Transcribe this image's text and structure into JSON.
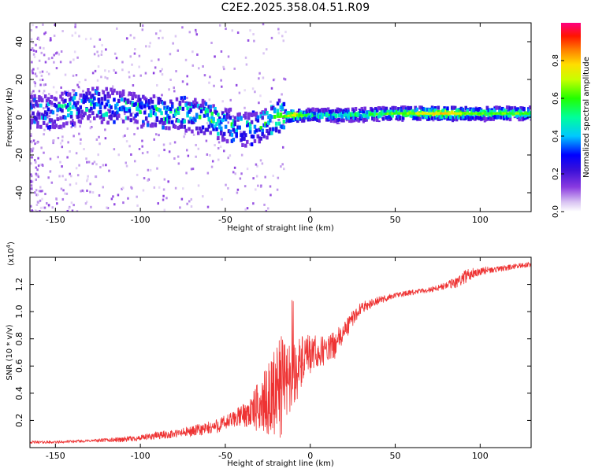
{
  "title": "C2E2.2025.358.04.51.R09",
  "chart_data": [
    {
      "type": "heatmap",
      "name": "spectrogram",
      "xlabel": "Height of straight line (km)",
      "ylabel": "Frequency (Hz)",
      "xlim": [
        -165,
        130
      ],
      "ylim": [
        -50,
        50
      ],
      "xticks": [
        -150,
        -100,
        -50,
        0,
        50,
        100
      ],
      "yticks": [
        -40,
        -20,
        0,
        20,
        40
      ],
      "colorbar": {
        "label": "Normalized spectral amplitude",
        "range": [
          0,
          1
        ],
        "ticks": [
          "0.0",
          "0.2",
          "0.4",
          "0.6",
          "0.8"
        ]
      },
      "ridge": {
        "description": "dominant frequency band vs height",
        "x": [
          -165,
          -150,
          -130,
          -110,
          -90,
          -70,
          -60,
          -50,
          -40,
          -30,
          -25,
          -20,
          -10,
          0,
          20,
          50,
          80,
          100,
          130
        ],
        "center_hz": [
          3,
          3,
          7,
          5,
          3,
          1,
          -1,
          -4,
          -7,
          -6,
          -3,
          0,
          1,
          1,
          1,
          2,
          2,
          2,
          2
        ],
        "amplitude": [
          0.25,
          0.3,
          0.35,
          0.35,
          0.4,
          0.4,
          0.45,
          0.4,
          0.35,
          0.35,
          0.4,
          0.6,
          0.75,
          0.5,
          0.5,
          0.6,
          0.8,
          0.6,
          0.6
        ]
      }
    },
    {
      "type": "line",
      "name": "snr",
      "xlabel": "Height of straight line (km)",
      "ylabel": "SNR (10 * v/v)",
      "scale_label": "(x10",
      "scale_exponent": "4",
      "scale_suffix": ")",
      "xlim": [
        -165,
        130
      ],
      "ylim": [
        0,
        1.4
      ],
      "xticks": [
        -150,
        -100,
        -50,
        0,
        50,
        100
      ],
      "yticks": [
        "0.2",
        "0.4",
        "0.6",
        "0.8",
        "1.0",
        "1.2"
      ],
      "series": [
        {
          "name": "SNR",
          "color": "#ee3333",
          "x": [
            -165,
            -150,
            -130,
            -110,
            -100,
            -90,
            -80,
            -70,
            -60,
            -50,
            -45,
            -40,
            -35,
            -30,
            -25,
            -20,
            -17,
            -15,
            -10,
            -5,
            0,
            5,
            10,
            15,
            20,
            25,
            30,
            40,
            50,
            60,
            70,
            80,
            85,
            90,
            95,
            100,
            110,
            120,
            130
          ],
          "mean": [
            0.04,
            0.04,
            0.05,
            0.06,
            0.07,
            0.09,
            0.1,
            0.12,
            0.14,
            0.18,
            0.21,
            0.24,
            0.26,
            0.3,
            0.35,
            0.42,
            0.45,
            0.5,
            0.55,
            0.62,
            0.68,
            0.7,
            0.72,
            0.76,
            0.85,
            0.95,
            1.03,
            1.08,
            1.12,
            1.14,
            1.16,
            1.19,
            1.21,
            1.25,
            1.28,
            1.3,
            1.31,
            1.33,
            1.35
          ],
          "noise": [
            0.01,
            0.01,
            0.01,
            0.02,
            0.02,
            0.03,
            0.03,
            0.04,
            0.05,
            0.06,
            0.06,
            0.08,
            0.12,
            0.2,
            0.25,
            0.35,
            0.4,
            0.3,
            0.25,
            0.2,
            0.15,
            0.12,
            0.1,
            0.1,
            0.08,
            0.06,
            0.04,
            0.03,
            0.02,
            0.02,
            0.02,
            0.03,
            0.04,
            0.05,
            0.04,
            0.03,
            0.02,
            0.02,
            0.02
          ]
        }
      ]
    }
  ],
  "colors": {
    "line": "#ee3333",
    "frame": "#000000"
  }
}
